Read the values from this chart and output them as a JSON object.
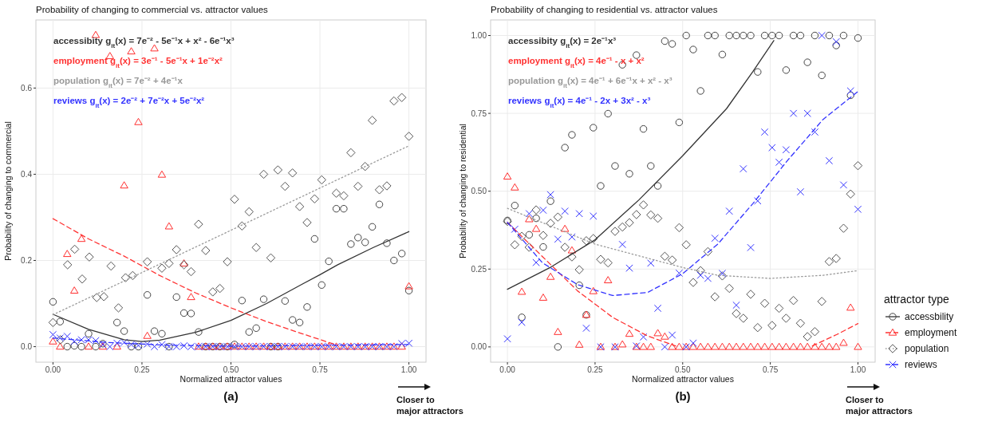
{
  "chart_data": [
    {
      "type": "scatter",
      "title": "Probability of changing to commercial vs. attractor values",
      "xlabel": "Normalized attractor values",
      "ylabel": "Probability of changing to commercial",
      "xlim": [
        -0.048,
        1.048
      ],
      "ylim": [
        -0.036,
        0.758
      ],
      "xticks": [
        {
          "value": 0,
          "label": "0.00"
        },
        {
          "value": 0.25,
          "label": "0.25"
        },
        {
          "value": 0.5,
          "label": "0.50"
        },
        {
          "value": 0.75,
          "label": "0.75"
        },
        {
          "value": 1,
          "label": "1.00"
        }
      ],
      "yticks": [
        {
          "value": 0,
          "label": "0.0"
        },
        {
          "value": 0.2,
          "label": "0.2"
        },
        {
          "value": 0.4,
          "label": "0.4"
        },
        {
          "value": 0.6,
          "label": "0.6"
        }
      ],
      "grid": true,
      "annotations": [
        "accessibity  g$_{it}$(x) = 7e⁻² - 5e⁻¹x + x² - 6e⁻¹x³",
        "employment  g$_{it}$(x) = 3e⁻¹ - 5e⁻¹x + 1e⁻²x²",
        "population g$_{it}$(x) = 7e⁻² + 4e⁻¹x",
        "reviews g$_{it}$(x) = 2e⁻² + 7e⁻²x + 5e⁻²x²",
        "(a)",
        "Closer to major attractors"
      ],
      "series": [
        {
          "marker": "circle",
          "color": "#444444",
          "x": [
            0,
            0.02,
            0.04,
            0.06,
            0.08,
            0.1,
            0.12,
            0.14,
            0.18,
            0.2,
            0.22,
            0.24,
            0.265,
            0.285,
            0.306,
            0.326,
            0.347,
            0.368,
            0.388,
            0.409,
            0.429,
            0.449,
            0.469,
            0.49,
            0.51,
            0.531,
            0.551,
            0.571,
            0.592,
            0.612,
            0.632,
            0.652,
            0.673,
            0.693,
            0.714,
            0.735,
            0.755,
            0.775,
            0.796,
            0.817,
            0.837,
            0.857,
            0.877,
            0.897,
            0.917,
            0.938,
            0.958,
            0.98,
            1
          ],
          "values": [
            0.104,
            0.058,
            0,
            0.002,
            0,
            0.03,
            0,
            0.007,
            0.056,
            0.036,
            0,
            0,
            0.12,
            0.036,
            0.03,
            0,
            0.115,
            0.078,
            0.077,
            0.034,
            0,
            0,
            0,
            0,
            0.005,
            0.107,
            0.034,
            0.043,
            0.11,
            0,
            0,
            0.106,
            0.062,
            0.056,
            0.092,
            0.25,
            0.143,
            0.198,
            0.32,
            0.32,
            0.238,
            0.253,
            0.242,
            0.278,
            0.33,
            0.24,
            0.2,
            0.216,
            0.13
          ]
        },
        {
          "marker": "triangle",
          "color": "#ff3030",
          "x": [
            0,
            0.02,
            0.04,
            0.06,
            0.08,
            0.1,
            0.12,
            0.14,
            0.16,
            0.18,
            0.2,
            0.22,
            0.24,
            0.265,
            0.285,
            0.306,
            0.326,
            0.368,
            0.388,
            0.409,
            0.429,
            0.449,
            0.469,
            0.49,
            0.51,
            0.531,
            0.551,
            0.571,
            0.592,
            0.612,
            0.632,
            0.652,
            0.673,
            0.693,
            0.714,
            0.735,
            0.755,
            0.775,
            0.796,
            0.817,
            0.837,
            0.857,
            0.877,
            0.897,
            0.917,
            0.938,
            0.958,
            0.98,
            1
          ],
          "values": [
            0.012,
            0,
            0.215,
            0.13,
            0.25,
            0,
            0.723,
            0,
            0.674,
            0,
            0.374,
            0.685,
            0.521,
            0.025,
            0.692,
            0.399,
            0.279,
            0.193,
            0.115,
            0,
            0,
            0,
            0,
            0,
            0,
            0,
            0,
            0,
            0,
            0,
            0,
            0,
            0,
            0,
            0,
            0,
            0,
            0,
            0,
            0,
            0,
            0,
            0,
            0,
            0,
            0,
            0,
            0,
            0.14
          ]
        },
        {
          "marker": "diamond",
          "color": "#555555",
          "x": [
            0,
            0.021,
            0.041,
            0.061,
            0.082,
            0.102,
            0.123,
            0.143,
            0.163,
            0.184,
            0.204,
            0.224,
            0.265,
            0.306,
            0.326,
            0.347,
            0.368,
            0.388,
            0.409,
            0.429,
            0.449,
            0.469,
            0.49,
            0.51,
            0.531,
            0.551,
            0.571,
            0.592,
            0.612,
            0.632,
            0.652,
            0.673,
            0.693,
            0.714,
            0.735,
            0.755,
            0.796,
            0.817,
            0.837,
            0.857,
            0.877,
            0.897,
            0.917,
            0.938,
            0.958,
            0.98,
            1
          ],
          "values": [
            0.056,
            0.016,
            0.19,
            0.226,
            0.157,
            0.208,
            0.114,
            0.116,
            0.187,
            0.09,
            0.16,
            0.165,
            0.197,
            0.182,
            0.193,
            0.225,
            0.19,
            0.174,
            0.284,
            0.223,
            0.127,
            0.135,
            0.197,
            0.342,
            0.28,
            0.313,
            0.23,
            0.4,
            0.206,
            0.41,
            0.372,
            0.403,
            0.325,
            0.288,
            0.343,
            0.387,
            0.356,
            0.35,
            0.45,
            0.372,
            0.418,
            0.525,
            0.364,
            0.373,
            0.57,
            0.578,
            0.488
          ]
        },
        {
          "marker": "cross",
          "color": "#3333ff",
          "x": [
            0,
            0.02,
            0.04,
            0.06,
            0.08,
            0.1,
            0.12,
            0.14,
            0.16,
            0.18,
            0.2,
            0.22,
            0.24,
            0.265,
            0.285,
            0.306,
            0.326,
            0.347,
            0.368,
            0.388,
            0.409,
            0.429,
            0.449,
            0.469,
            0.49,
            0.51,
            0.531,
            0.551,
            0.571,
            0.592,
            0.612,
            0.632,
            0.652,
            0.673,
            0.693,
            0.714,
            0.735,
            0.755,
            0.775,
            0.796,
            0.817,
            0.837,
            0.857,
            0.877,
            0.897,
            0.917,
            0.938,
            0.958,
            0.98,
            1
          ],
          "values": [
            0.028,
            0.02,
            0.024,
            0.012,
            0.016,
            0.016,
            0.014,
            0.005,
            0,
            0.008,
            0.01,
            0.005,
            0.003,
            0.006,
            0,
            0.005,
            0,
            0,
            0.002,
            0,
            0,
            0,
            0,
            0,
            0,
            0,
            0,
            0,
            0,
            0,
            0,
            0,
            0,
            0,
            0,
            0,
            0,
            0,
            0,
            0,
            0,
            0,
            0,
            0,
            0,
            0,
            0,
            0,
            0.007,
            0.008
          ]
        },
        {
          "type": "line",
          "line_style": "solid",
          "color": "#333333",
          "x": [
            0,
            0.1,
            0.2,
            0.25,
            0.3,
            0.4,
            0.5,
            0.6,
            0.7,
            0.75,
            0.8,
            0.9,
            1
          ],
          "values": [
            0.075,
            0.04,
            0.016,
            0.012,
            0.015,
            0.033,
            0.061,
            0.1,
            0.145,
            0.167,
            0.19,
            0.23,
            0.267
          ]
        },
        {
          "type": "line",
          "line_style": "dashed",
          "color": "#ff3333",
          "x": [
            0,
            0.1,
            0.2,
            0.3,
            0.4,
            0.5,
            0.6,
            0.7,
            0.8
          ],
          "values": [
            0.297,
            0.25,
            0.21,
            0.165,
            0.125,
            0.09,
            0.058,
            0.03,
            0.003
          ]
        },
        {
          "type": "line",
          "line_style": "dotted",
          "color": "#999999",
          "x": [
            0,
            0.5,
            1
          ],
          "values": [
            0.074,
            0.27,
            0.466
          ]
        },
        {
          "type": "line",
          "line_style": "dashed",
          "color": "#3333ff",
          "x": [
            0,
            0.15,
            0.3,
            0.5,
            1
          ],
          "values": [
            0.02,
            0.01,
            0.004,
            0.001,
            0.005
          ]
        }
      ]
    },
    {
      "type": "scatter",
      "title": "Probability of changing to residential vs. attractor values",
      "xlabel": "Normalized attractor values",
      "ylabel": "Probability of changing to residential",
      "xlim": [
        -0.048,
        1.049
      ],
      "ylim": [
        -0.049,
        1.05
      ],
      "xticks": [
        {
          "value": 0,
          "label": "0.00"
        },
        {
          "value": 0.25,
          "label": "0.25"
        },
        {
          "value": 0.5,
          "label": "0.50"
        },
        {
          "value": 0.75,
          "label": "0.75"
        },
        {
          "value": 1,
          "label": "1.00"
        }
      ],
      "yticks": [
        {
          "value": 0,
          "label": "0.00"
        },
        {
          "value": 0.25,
          "label": "0.25"
        },
        {
          "value": 0.5,
          "label": "0.50"
        },
        {
          "value": 0.75,
          "label": "0.75"
        },
        {
          "value": 1,
          "label": "1.00"
        }
      ],
      "grid": true,
      "legend": "right",
      "legend_title": "attractor type",
      "annotations": [
        "accessibity  g$_{it}$(x) = 2e⁻¹x³",
        "employment  g$_{it}$(x) = 4e⁻¹ - x + x²",
        "population g$_{it}$(x) = 4e⁻¹ + 6e⁻¹x + x² - x³",
        "reviews g$_{it}$(x) = 4e⁻¹ - 2x + 3x² - x³",
        "(b)",
        "Closer to major attractors"
      ],
      "series": [
        {
          "name": "accessbility",
          "marker": "circle",
          "color": "#444444",
          "x": [
            0,
            0.021,
            0.041,
            0.062,
            0.082,
            0.102,
            0.123,
            0.144,
            0.164,
            0.184,
            0.205,
            0.225,
            0.245,
            0.266,
            0.287,
            0.307,
            0.328,
            0.348,
            0.368,
            0.388,
            0.409,
            0.429,
            0.449,
            0.47,
            0.49,
            0.51,
            0.53,
            0.551,
            0.572,
            0.592,
            0.613,
            0.633,
            0.653,
            0.673,
            0.694,
            0.714,
            0.734,
            0.755,
            0.775,
            0.795,
            0.816,
            0.836,
            0.856,
            0.877,
            0.897,
            0.918,
            0.938,
            0.959,
            0.979,
            1
          ],
          "values": [
            0.406,
            0.454,
            0.095,
            0.36,
            0.413,
            0.321,
            0.468,
            0,
            0.64,
            0.681,
            0.198,
            0.103,
            0.704,
            0.517,
            0.749,
            0.581,
            0.906,
            0.556,
            0.937,
            0.7,
            0.581,
            0.517,
            0.982,
            0.973,
            0.721,
            1,
            0.955,
            0.822,
            1,
            1,
            0.939,
            1,
            1,
            1,
            1,
            0.883,
            1,
            1,
            1,
            0.889,
            1,
            1,
            0.914,
            1,
            0.872,
            1,
            0.968,
            1,
            0.808,
            0.992
          ]
        },
        {
          "name": "employment",
          "marker": "triangle",
          "color": "#ff3030",
          "x": [
            0,
            0.021,
            0.041,
            0.062,
            0.082,
            0.102,
            0.123,
            0.144,
            0.164,
            0.184,
            0.205,
            0.225,
            0.245,
            0.266,
            0.287,
            0.307,
            0.328,
            0.348,
            0.368,
            0.388,
            0.409,
            0.429,
            0.449,
            0.47,
            0.49,
            0.51,
            0.53,
            0.551,
            0.572,
            0.592,
            0.613,
            0.633,
            0.653,
            0.673,
            0.694,
            0.714,
            0.734,
            0.755,
            0.775,
            0.795,
            0.816,
            0.836,
            0.856,
            0.877,
            0.897,
            0.918,
            0.938,
            0.959,
            0.979,
            1
          ],
          "values": [
            0.547,
            0.512,
            0.177,
            0.41,
            0.379,
            0.158,
            0.225,
            0.048,
            0.379,
            0.31,
            0.007,
            0.103,
            0.179,
            0,
            0.214,
            0,
            0.008,
            0.042,
            0,
            0,
            0,
            0.044,
            0.033,
            0,
            0,
            0,
            0,
            0,
            0,
            0,
            0,
            0,
            0,
            0,
            0,
            0,
            0,
            0,
            0,
            0,
            0,
            0,
            0,
            0,
            0,
            0,
            0,
            0.013,
            0.126,
            0
          ]
        },
        {
          "name": "population",
          "marker": "diamond",
          "color": "#555555",
          "x": [
            0,
            0.021,
            0.041,
            0.062,
            0.082,
            0.102,
            0.123,
            0.144,
            0.164,
            0.184,
            0.205,
            0.225,
            0.245,
            0.266,
            0.287,
            0.307,
            0.328,
            0.348,
            0.368,
            0.388,
            0.409,
            0.429,
            0.449,
            0.47,
            0.49,
            0.51,
            0.53,
            0.551,
            0.572,
            0.592,
            0.613,
            0.633,
            0.653,
            0.673,
            0.694,
            0.714,
            0.734,
            0.755,
            0.775,
            0.795,
            0.816,
            0.836,
            0.856,
            0.877,
            0.897,
            0.918,
            0.938,
            0.959,
            0.979,
            1
          ],
          "values": [
            0.403,
            0.328,
            0.355,
            0.32,
            0.44,
            0.358,
            0.397,
            0.417,
            0.32,
            0.289,
            0.248,
            0.341,
            0.348,
            0.281,
            0.27,
            0.371,
            0.385,
            0.399,
            0.425,
            0.456,
            0.424,
            0.413,
            0.291,
            0.279,
            0.383,
            0.328,
            0.207,
            0.245,
            0.306,
            0.161,
            0.228,
            0.188,
            0.107,
            0.092,
            0.169,
            0.062,
            0.14,
            0.069,
            0.124,
            0.092,
            0.149,
            0.076,
            0.033,
            0.049,
            0.146,
            0.274,
            0.284,
            0.381,
            0.491,
            0.582
          ]
        },
        {
          "name": "reviews",
          "marker": "cross",
          "color": "#3333ff",
          "x": [
            0,
            0.021,
            0.041,
            0.062,
            0.082,
            0.102,
            0.123,
            0.144,
            0.164,
            0.184,
            0.205,
            0.225,
            0.245,
            0.266,
            0.307,
            0.328,
            0.348,
            0.368,
            0.388,
            0.409,
            0.429,
            0.449,
            0.47,
            0.49,
            0.51,
            0.53,
            0.551,
            0.572,
            0.592,
            0.613,
            0.633,
            0.653,
            0.673,
            0.694,
            0.714,
            0.734,
            0.755,
            0.775,
            0.795,
            0.816,
            0.836,
            0.856,
            0.877,
            0.897,
            0.918,
            0.938,
            0.959,
            0.979,
            1
          ],
          "values": [
            0.026,
            0.378,
            0.079,
            0.428,
            0.271,
            0.439,
            0.489,
            0.346,
            0.436,
            0.353,
            0.428,
            0.06,
            0.42,
            0,
            0,
            0.329,
            0.253,
            0.003,
            0.032,
            0.269,
            0.124,
            0,
            0.038,
            0.237,
            0,
            0.012,
            0.23,
            0.22,
            0.349,
            0.236,
            0.436,
            0.134,
            0.572,
            0.319,
            0.469,
            0.69,
            0.64,
            0.593,
            0.633,
            0.75,
            0.498,
            0.75,
            0.69,
            1,
            0.598,
            0.98,
            0.52,
            0.822,
            0.442
          ]
        },
        {
          "type": "line",
          "line_style": "solid",
          "color": "#333333",
          "x": [
            0,
            0.125,
            0.25,
            0.375,
            0.5,
            0.625,
            0.7,
            0.76
          ],
          "values": [
            0.185,
            0.257,
            0.344,
            0.472,
            0.614,
            0.765,
            0.884,
            0.984
          ]
        },
        {
          "type": "line",
          "line_style": "dashed",
          "color": "#ff3333",
          "x": [
            0,
            0.1,
            0.2,
            0.3,
            0.4,
            0.48,
            0.6,
            0.87,
            0.94,
            1
          ],
          "values": [
            0.4,
            0.29,
            0.18,
            0.095,
            0.035,
            0.003,
            null,
            0.003,
            0.04,
            0.075
          ]
        },
        {
          "type": "line",
          "line_style": "dotted",
          "color": "#999999",
          "x": [
            0,
            0.25,
            0.5,
            0.6,
            0.75,
            0.9,
            1
          ],
          "values": [
            0.445,
            0.33,
            0.255,
            0.23,
            0.22,
            0.23,
            0.245
          ]
        },
        {
          "type": "line",
          "line_style": "dashed",
          "color": "#3333ff",
          "x": [
            0,
            0.1,
            0.2,
            0.3,
            0.4,
            0.5,
            0.6,
            0.7,
            0.8,
            0.9,
            1
          ],
          "values": [
            0.4,
            0.27,
            0.2,
            0.165,
            0.175,
            0.235,
            0.33,
            0.46,
            0.6,
            0.73,
            0.82
          ]
        }
      ]
    }
  ]
}
